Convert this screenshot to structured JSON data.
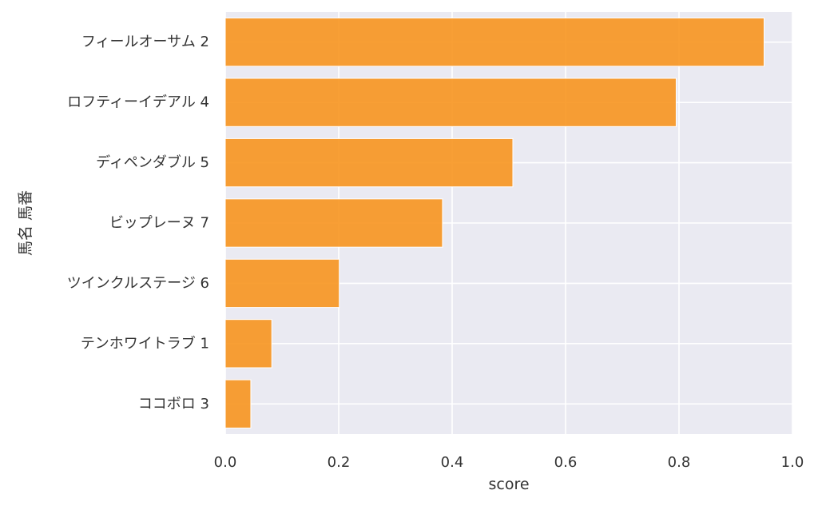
{
  "chart_data": {
    "type": "bar",
    "orientation": "horizontal",
    "xlabel": "score",
    "ylabel": "馬名 馬番",
    "xlim": [
      0,
      1.0
    ],
    "x_ticks": [
      "0.0",
      "0.2",
      "0.4",
      "0.6",
      "0.8",
      "1.0"
    ],
    "grid": true,
    "categories": [
      "フィールオーサム 2",
      "ロフティーイデアル 4",
      "ディペンダブル 5",
      "ビップレーヌ 7",
      "ツインクルステージ 6",
      "テンホワイトラブ 1",
      "ココボロ 3"
    ],
    "values": [
      0.95,
      0.795,
      0.507,
      0.383,
      0.201,
      0.082,
      0.045
    ],
    "colors": {
      "bar": "#f7951f",
      "plot_background": "#eaeaf2",
      "grid": "#ffffff",
      "text": "#333333"
    }
  }
}
